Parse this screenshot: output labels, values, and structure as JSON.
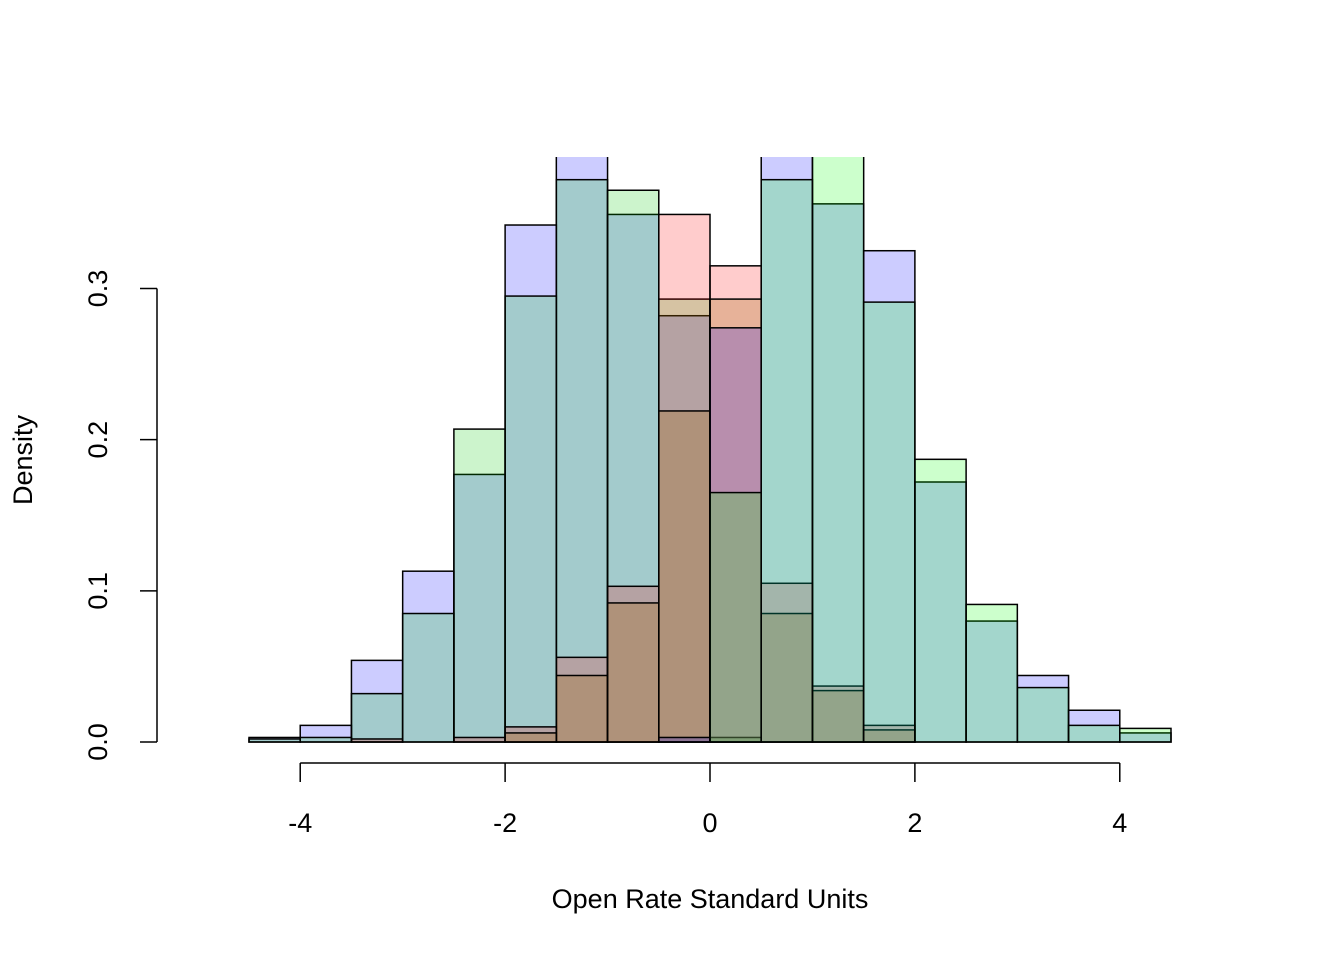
{
  "chart_data": {
    "type": "histogram",
    "xlabel": "Open Rate Standard Units",
    "ylabel": "Density",
    "bins": [
      -4.5,
      -4,
      -3.5,
      -3,
      -2.5,
      -2,
      -1.5,
      -1,
      -0.5,
      0,
      0.5,
      1,
      1.5,
      2,
      2.5,
      3,
      3.5,
      4,
      4.5
    ],
    "series": [
      {
        "color": "rgba(0,0,255,0.2)",
        "values": [
          0.003,
          0.011,
          0.054,
          0.113,
          0.177,
          0.342,
          0.4,
          0.349,
          0.282,
          0,
          0,
          0,
          0,
          0,
          0,
          0,
          0,
          0
        ]
      },
      {
        "color": "rgba(0,200,0,0.2)",
        "values": [
          0.002,
          0.003,
          0.032,
          0.085,
          0.207,
          0.295,
          0.372,
          0.365,
          0.293,
          0.003,
          0,
          0,
          0,
          0,
          0,
          0,
          0,
          0
        ]
      },
      {
        "color": "rgba(255,0,0,0.2)",
        "values": [
          0,
          0,
          0.002,
          0,
          0.003,
          0.01,
          0.056,
          0.103,
          0.349,
          0.315,
          0.105,
          0.037,
          0.011,
          0,
          0,
          0,
          0,
          0
        ]
      },
      {
        "color": "rgba(160,100,0,0.25)",
        "values": [
          0,
          0,
          0,
          0,
          0,
          0.006,
          0.044,
          0.092,
          0.219,
          0.293,
          0.085,
          0.034,
          0.008,
          0,
          0,
          0,
          0,
          0
        ]
      },
      {
        "color": "rgba(0,0,255,0.2)",
        "values": [
          0,
          0,
          0,
          0,
          0,
          0,
          0,
          0,
          0.003,
          0.274,
          0.4,
          0.356,
          0.325,
          0.172,
          0.08,
          0.044,
          0.021,
          0.006
        ]
      },
      {
        "color": "rgba(0,255,0,0.2)",
        "values": [
          0,
          0,
          0,
          0,
          0,
          0,
          0,
          0,
          0,
          0.165,
          0.372,
          0.4,
          0.291,
          0.187,
          0.091,
          0.036,
          0.011,
          0.009
        ]
      }
    ],
    "xlim": [
      -4.5,
      4.5
    ],
    "ylim": [
      0,
      0.387
    ],
    "xticks": [
      -4,
      -2,
      0,
      2,
      4
    ],
    "yticks": [
      {
        "value": 0,
        "label": "0.0"
      },
      0.1,
      0.2,
      0.3
    ]
  }
}
